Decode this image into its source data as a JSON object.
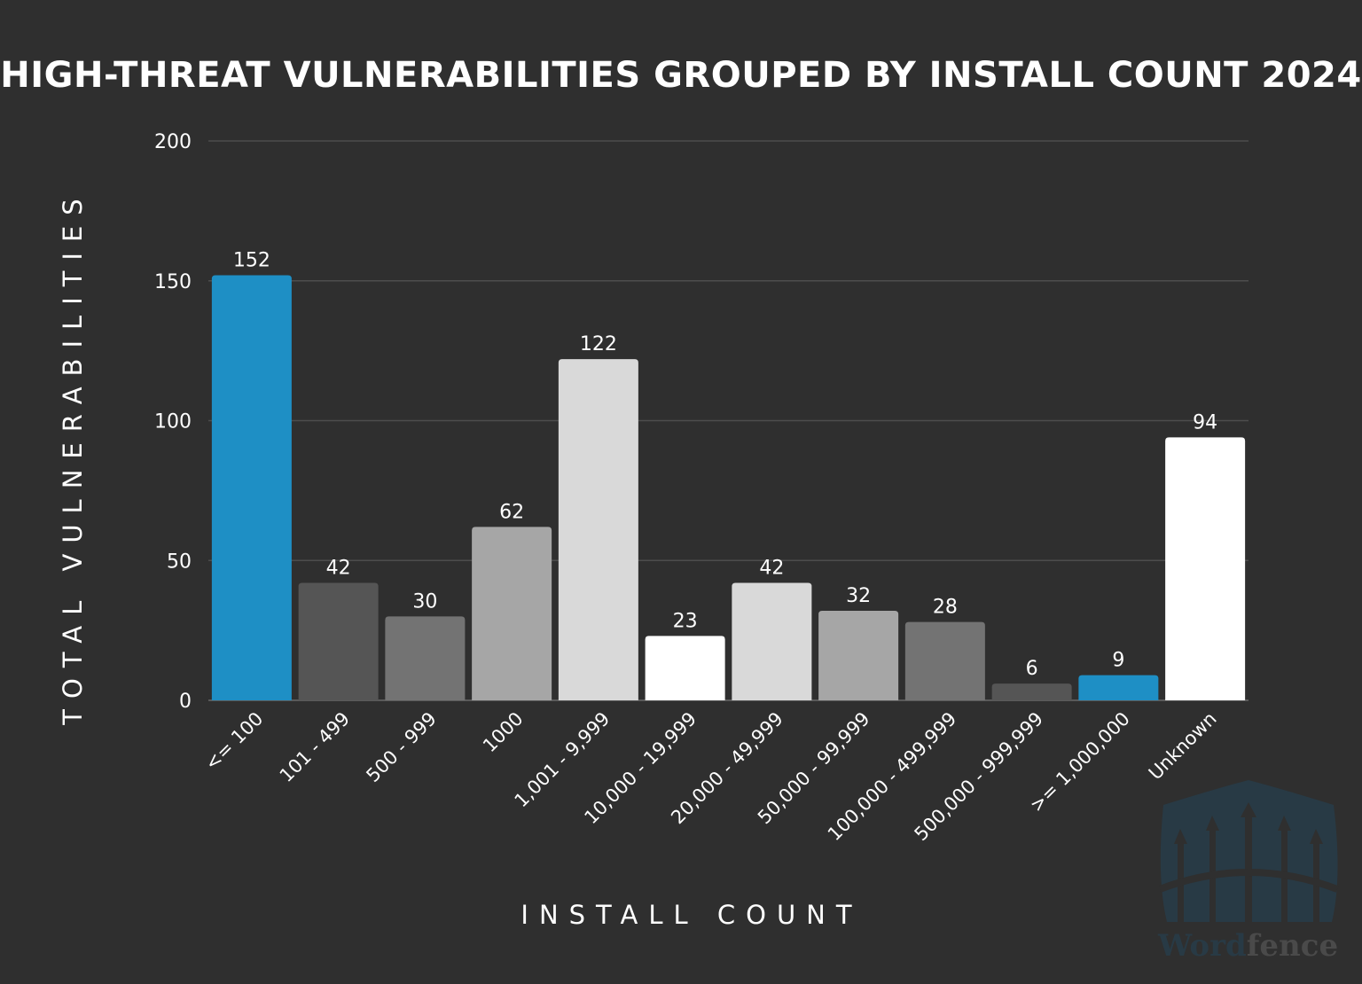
{
  "chart_data": {
    "type": "bar",
    "title": "HIGH-THREAT VULNERABILITIES GROUPED BY INSTALL COUNT 2024",
    "xlabel": "INSTALL COUNT",
    "ylabel": "TOTAL VULNERABILITIES",
    "ylim": [
      0,
      200
    ],
    "yticks": [
      0,
      50,
      100,
      150,
      200
    ],
    "grid": true,
    "categories": [
      "<= 100",
      "101 - 499",
      "500 - 999",
      "1000",
      "1,001 - 9,999",
      "10,000 - 19,999",
      "20,000 - 49,999",
      "50,000 - 99,999",
      "100,000 - 499,999",
      "500,000 - 999,999",
      ">= 1,000,000",
      "Unknown"
    ],
    "values": [
      152,
      42,
      30,
      62,
      122,
      23,
      42,
      32,
      28,
      6,
      9,
      94
    ],
    "colors": [
      "#1e8fc5",
      "#555555",
      "#737373",
      "#a6a6a6",
      "#d9d9d9",
      "#ffffff",
      "#d9d9d9",
      "#a6a6a6",
      "#737373",
      "#555555",
      "#1e8fc5",
      "#ffffff"
    ]
  },
  "watermark": {
    "logo_text": "Wordfence",
    "colors": {
      "shield": "#283a45",
      "word": "#283a45",
      "fence": "#4a4a4a"
    }
  }
}
